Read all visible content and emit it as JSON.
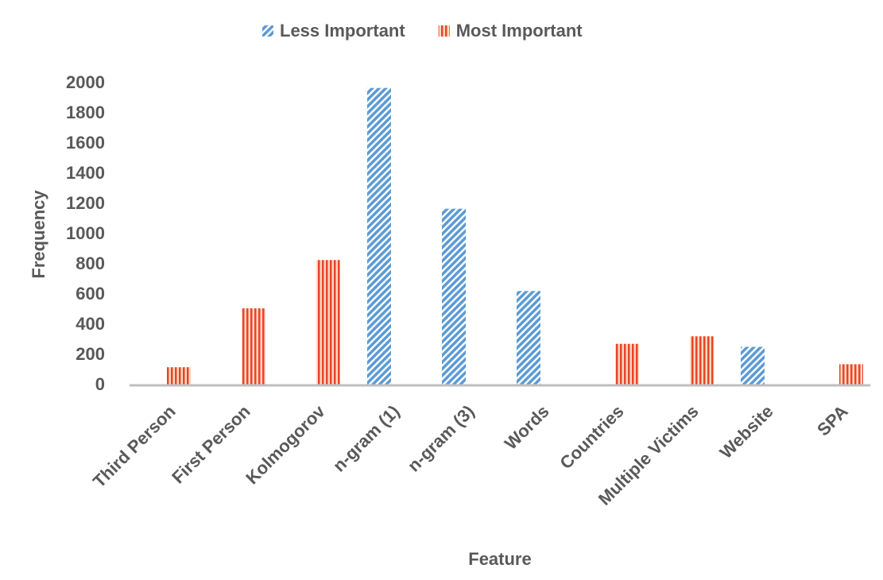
{
  "chart_data": {
    "type": "bar",
    "x_label": "Feature",
    "y_label": "Frequency",
    "categories": [
      "Third Person",
      "First Person",
      "Kolmogorov",
      "n-gram (1)",
      "n-gram (3)",
      "Words",
      "Countries",
      "Multiple Victims",
      "Website",
      "SPA"
    ],
    "series": [
      {
        "name": "Less Important",
        "color": "#5b9bd5",
        "values": [
          null,
          null,
          null,
          1970,
          1170,
          625,
          null,
          null,
          255,
          null
        ]
      },
      {
        "name": "Most Important",
        "color": "#ed7d31",
        "values": [
          120,
          510,
          830,
          null,
          null,
          null,
          275,
          325,
          null,
          140
        ]
      }
    ],
    "ylim": [
      0,
      2000
    ],
    "yticks": [
      0,
      200,
      400,
      600,
      800,
      1000,
      1200,
      1400,
      1600,
      1800,
      2000
    ],
    "grid": false,
    "legend": "top"
  }
}
